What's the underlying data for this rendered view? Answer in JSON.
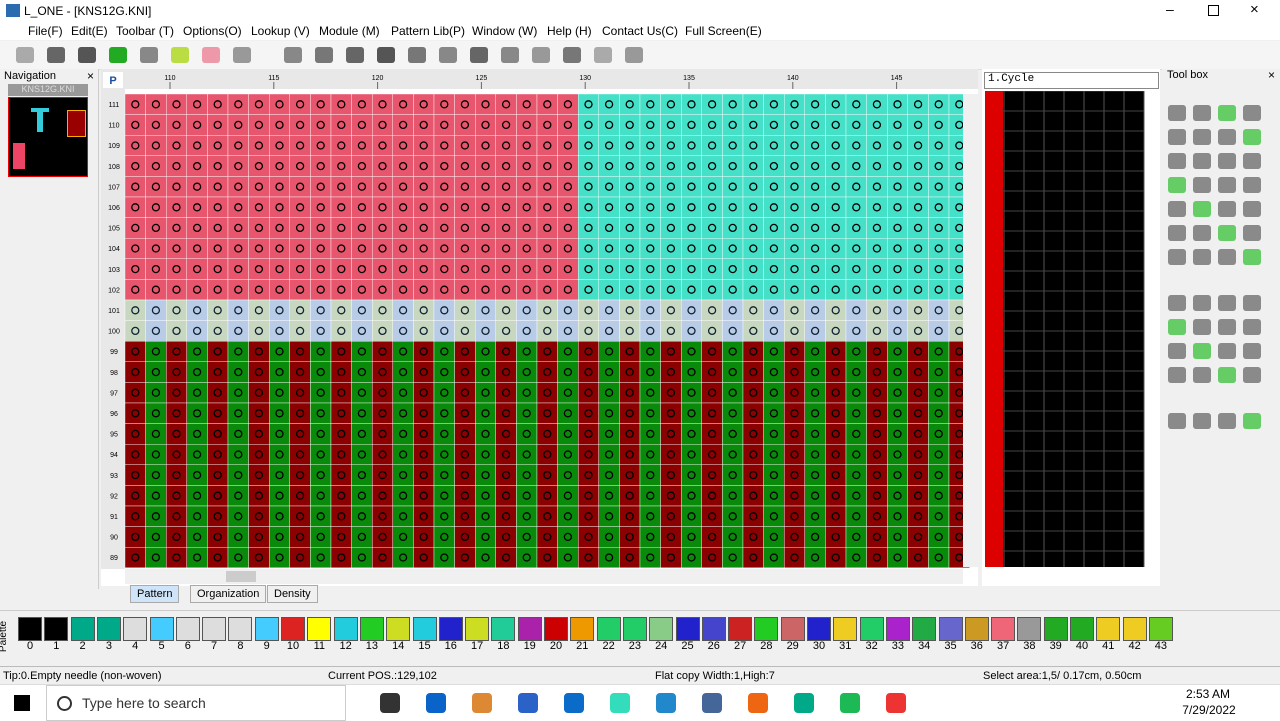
{
  "window": {
    "title": "L_ONE - [KNS12G.KNI]"
  },
  "menu": [
    "File(F)",
    "Edit(E)",
    "Toolbar (T)",
    "Options(O)",
    "Lookup (V)",
    "Module (M)",
    "Pattern Lib(P)",
    "Window (W)",
    "Help (H)",
    "Contact Us(C)",
    "Full Screen(E)"
  ],
  "navigation": {
    "title": "Navigation",
    "file": "KNS12G.KNI"
  },
  "editor": {
    "corner": "P",
    "column_labels": [
      110,
      115,
      120,
      125,
      130,
      135,
      140,
      145
    ],
    "row_labels": [
      111,
      110,
      109,
      108,
      107,
      106,
      105,
      104,
      103,
      102,
      101,
      100,
      99,
      98,
      97,
      96,
      95,
      94,
      93,
      92,
      91,
      90,
      89
    ],
    "tabs": [
      "Pattern",
      "Organization",
      "Density"
    ]
  },
  "cycle_panel": {
    "title": "1.Cycle"
  },
  "toolbox": {
    "title": "Tool box"
  },
  "palette": {
    "label": "Palette",
    "numbers": [
      0,
      1,
      2,
      3,
      4,
      5,
      6,
      7,
      8,
      9,
      10,
      11,
      12,
      13,
      14,
      15,
      16,
      17,
      18,
      19,
      20,
      21,
      22,
      23,
      24,
      25,
      26,
      27,
      28,
      29,
      30,
      31,
      32,
      33,
      34,
      35,
      36,
      37,
      38,
      39,
      40,
      41,
      42,
      43
    ]
  },
  "status_bar": {
    "tip": "Tip:0.Empty needle (non-woven)",
    "position": "Current POS.:129,102",
    "flat_copy": "Flat copy Width:1,High:7",
    "select_area": "Select area:1,5/  0.17cm, 0.50cm"
  },
  "taskbar": {
    "search": "Type here to search",
    "time": "2:53 AM",
    "date": "7/29/2022"
  }
}
